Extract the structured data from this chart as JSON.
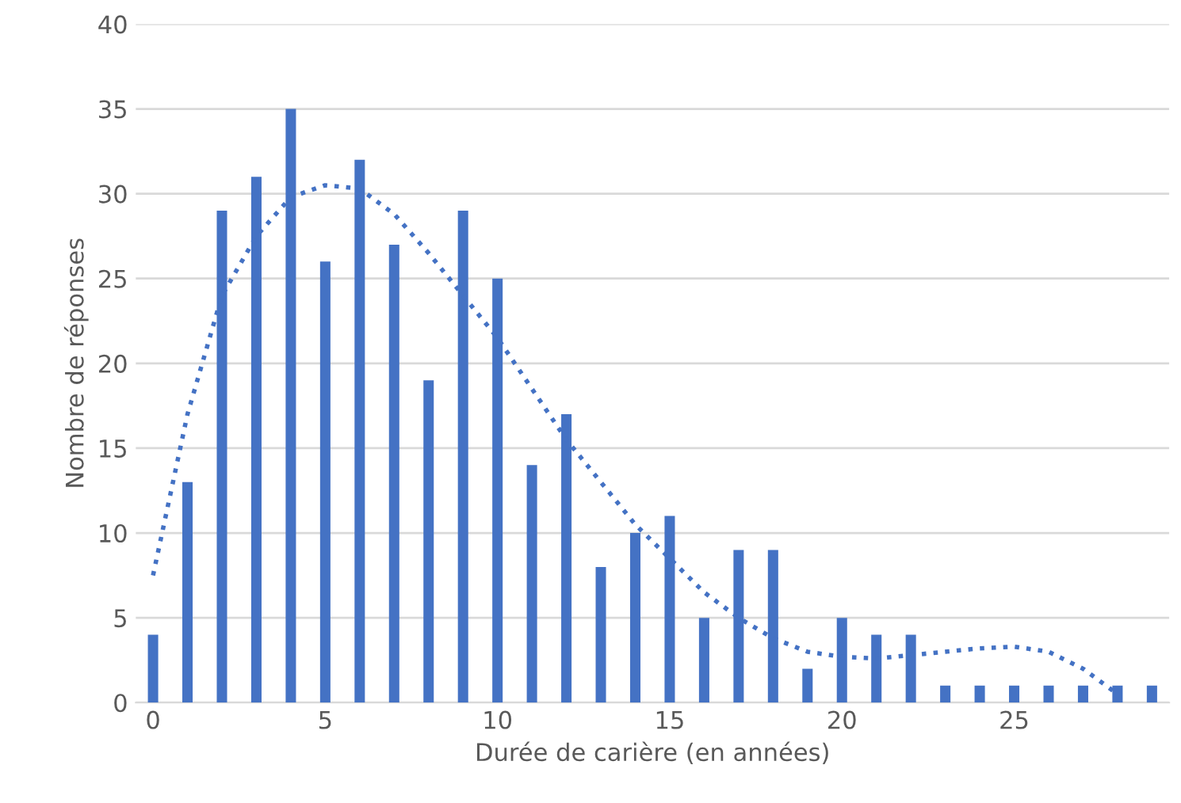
{
  "chart_data": {
    "type": "bar",
    "xlabel": "Durée de carière (en années)",
    "ylabel": "Nombre de réponses",
    "x": [
      0,
      1,
      2,
      3,
      4,
      5,
      6,
      7,
      8,
      9,
      10,
      11,
      12,
      13,
      14,
      15,
      16,
      17,
      18,
      19,
      20,
      21,
      22,
      23,
      24,
      25,
      26,
      27,
      28,
      29
    ],
    "series": [
      {
        "color": "#4472c4",
        "values": [
          4,
          13,
          29,
          31,
          35,
          26,
          32,
          27,
          19,
          29,
          25,
          14,
          17,
          8,
          10,
          11,
          5,
          9,
          9,
          2,
          5,
          4,
          4,
          1,
          1,
          1,
          1,
          1,
          1,
          1
        ]
      },
      {
        "type": "line",
        "color": "#4472c4",
        "line_style": "dotted",
        "x": [
          0,
          1,
          2,
          3,
          4,
          5,
          6,
          7,
          8,
          9,
          10,
          11,
          12,
          13,
          14,
          15,
          16,
          17,
          18,
          19,
          20,
          21,
          22,
          23,
          24,
          25,
          26,
          27,
          28
        ],
        "values": [
          7.5,
          17,
          24,
          27.5,
          29.8,
          30.5,
          30.3,
          28.8,
          26.5,
          24,
          21.5,
          18.5,
          15.5,
          13,
          10.5,
          8.5,
          6.5,
          5,
          3.8,
          3,
          2.7,
          2.6,
          2.8,
          3,
          3.2,
          3.3,
          3,
          2,
          0.5
        ]
      }
    ],
    "xlim": [
      -0.5,
      29.5
    ],
    "xticks": [
      0,
      5,
      10,
      15,
      20,
      25
    ],
    "ylim": [
      0,
      40
    ],
    "yticks": [
      0,
      5,
      10,
      15,
      20,
      25,
      30,
      35,
      40
    ],
    "grid": "y",
    "legend": false
  }
}
